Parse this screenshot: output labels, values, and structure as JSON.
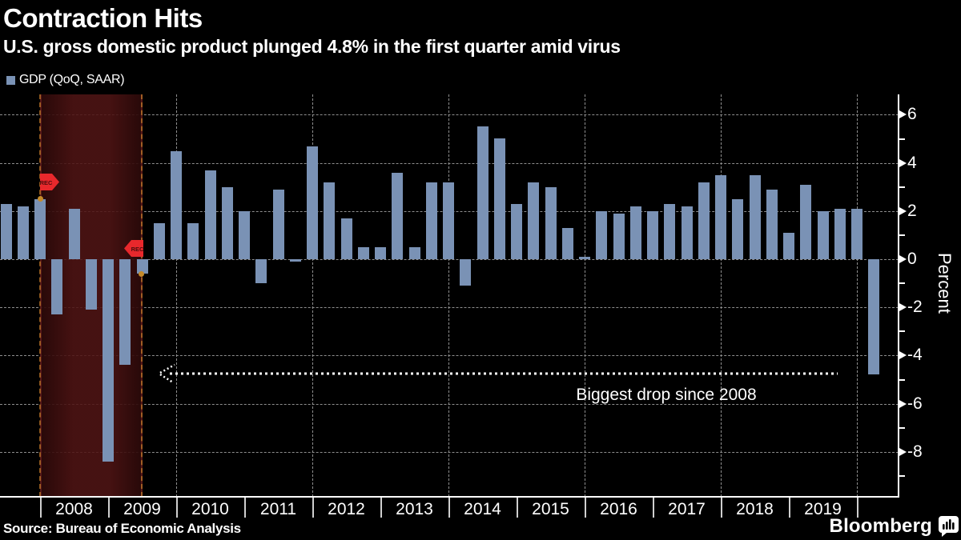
{
  "header": {
    "title": "Contraction Hits",
    "subtitle": "U.S. gross domestic product plunged 4.8% in the first quarter amid virus"
  },
  "legend": {
    "label": "GDP (QoQ, SAAR)"
  },
  "chart_data": {
    "type": "bar",
    "title": "Contraction Hits",
    "ylabel": "Percent",
    "ylim": [
      -9.8,
      6.8
    ],
    "grid": "horizontal dashed lines every 2 units; vertical dashed lines every 2 years",
    "legend_position": "top-left",
    "y_major_ticks": [
      6,
      4,
      2,
      0,
      -2,
      -4,
      -6,
      -8
    ],
    "y_minor_ticks": [
      5,
      3,
      1,
      -1,
      -3,
      -5,
      -7,
      -9
    ],
    "x_year_labels": [
      "2008",
      "2009",
      "2010",
      "2011",
      "2012",
      "2013",
      "2014",
      "2015",
      "2016",
      "2017",
      "2018",
      "2019"
    ],
    "x_gridline_years": [
      2010,
      2012,
      2014,
      2016,
      2018,
      2020
    ],
    "categories": [
      "2007 Q2",
      "2007 Q3",
      "2007 Q4",
      "2008 Q1",
      "2008 Q2",
      "2008 Q3",
      "2008 Q4",
      "2009 Q1",
      "2009 Q2",
      "2009 Q3",
      "2009 Q4",
      "2010 Q1",
      "2010 Q2",
      "2010 Q3",
      "2010 Q4",
      "2011 Q1",
      "2011 Q2",
      "2011 Q3",
      "2011 Q4",
      "2012 Q1",
      "2012 Q2",
      "2012 Q3",
      "2012 Q4",
      "2013 Q1",
      "2013 Q2",
      "2013 Q3",
      "2013 Q4",
      "2014 Q1",
      "2014 Q2",
      "2014 Q3",
      "2014 Q4",
      "2015 Q1",
      "2015 Q2",
      "2015 Q3",
      "2015 Q4",
      "2016 Q1",
      "2016 Q2",
      "2016 Q3",
      "2016 Q4",
      "2017 Q1",
      "2017 Q2",
      "2017 Q3",
      "2017 Q4",
      "2018 Q1",
      "2018 Q2",
      "2018 Q3",
      "2018 Q4",
      "2019 Q1",
      "2019 Q2",
      "2019 Q3",
      "2019 Q4",
      "2020 Q1"
    ],
    "series": [
      {
        "name": "GDP (QoQ, SAAR)",
        "values": [
          2.3,
          2.2,
          2.5,
          -2.3,
          2.1,
          -2.1,
          -8.4,
          -4.4,
          -0.6,
          1.5,
          4.5,
          1.5,
          3.7,
          3.0,
          2.0,
          -1.0,
          2.9,
          -0.1,
          4.7,
          3.2,
          1.7,
          0.5,
          0.5,
          3.6,
          0.5,
          3.2,
          3.2,
          -1.1,
          5.5,
          5.0,
          2.3,
          3.2,
          3.0,
          1.3,
          0.1,
          2.0,
          1.9,
          2.2,
          2.0,
          2.3,
          2.2,
          3.2,
          3.5,
          2.5,
          3.5,
          2.9,
          1.1,
          3.1,
          2.0,
          2.1,
          2.1,
          -4.8
        ]
      }
    ],
    "recession_band": {
      "start": "2007 Q4",
      "end": "2009 Q2",
      "flag_label": "REC"
    },
    "annotation": {
      "text": "Biggest drop since 2008",
      "value": -4.8
    },
    "colors": {
      "bar": "#7a92b5",
      "recession_fill": "#4f1414",
      "recession_fill_edge": "#2a0909",
      "recession_edge_line": "#7c2424",
      "flag_red": "#e8282c",
      "flag_text": "#4a0d0d",
      "marker_orange": "#c48a2b",
      "grid": "#8e8e8e",
      "annotation_line": "#ffffff",
      "axis": "#ffffff",
      "background": "#000000"
    }
  },
  "footer": {
    "source": "Source: Bureau of Economic Analysis",
    "brand": "Bloomberg"
  }
}
